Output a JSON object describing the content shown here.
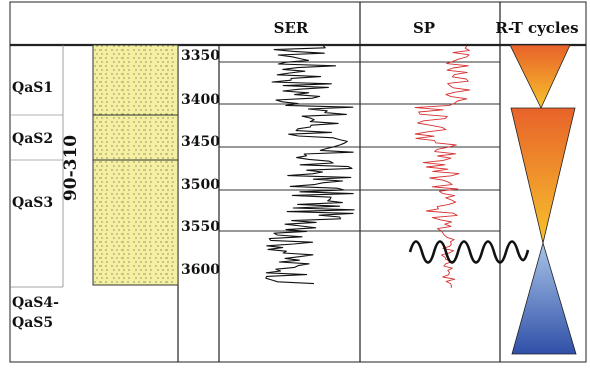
{
  "headers": {
    "ser": "SER",
    "sp": "SP",
    "rt": "R-T cycles"
  },
  "units": [
    {
      "label": "QaS1"
    },
    {
      "label": "QaS2"
    },
    {
      "label": "QaS3"
    },
    {
      "label": "QaS4-"
    },
    {
      "label": "QaS5"
    }
  ],
  "thickness_label": "90-310",
  "depths": [
    "3350",
    "3400",
    "3450",
    "3500",
    "3550",
    "3600"
  ],
  "colors": {
    "lithology_fill": "#f4f0a0",
    "ser_curve": "#111111",
    "sp_curve": "#d63030",
    "triangle_warm_top": "#e8622a",
    "triangle_warm_bottom": "#f7c22c",
    "triangle_cool_top": "#a8c4e8",
    "triangle_cool_bottom": "#3050a8"
  }
}
